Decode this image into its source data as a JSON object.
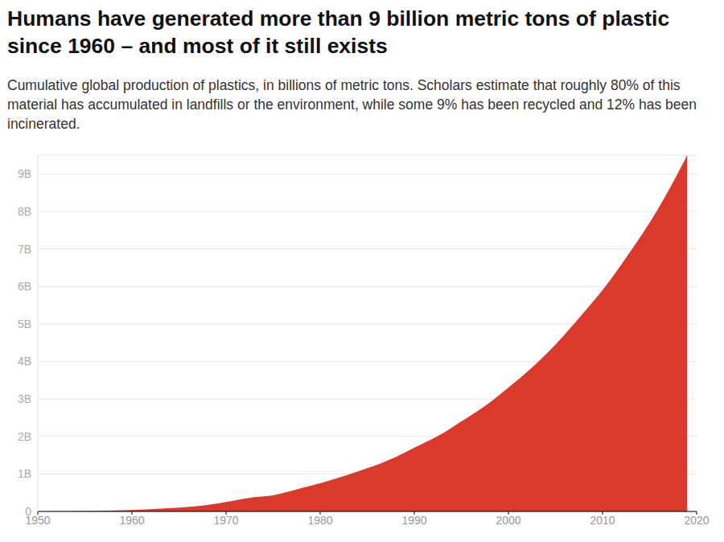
{
  "chart_data": {
    "type": "area",
    "title": "Humans have generated more than 9 billion metric tons of plastic since 1960 – and most of it still exists",
    "subtitle": "Cumulative global production of plastics, in billions of metric tons. Scholars estimate that roughly 80% of this material has accumulated in landfills or the environment, while some 9% has been recycled and 12% has been incinerated.",
    "x": [
      1950,
      1955,
      1960,
      1962,
      1965,
      1968,
      1970,
      1973,
      1975,
      1978,
      1980,
      1983,
      1985,
      1988,
      1990,
      1993,
      1995,
      1998,
      2000,
      2003,
      2005,
      2008,
      2010,
      2013,
      2015,
      2017,
      2019
    ],
    "values": [
      0,
      10000000,
      40000000,
      60000000,
      100000000,
      170000000,
      250000000,
      380000000,
      430000000,
      620000000,
      750000000,
      980000000,
      1150000000,
      1450000000,
      1700000000,
      2080000000,
      2400000000,
      2900000000,
      3300000000,
      3950000000,
      4450000000,
      5300000000,
      5900000000,
      6950000000,
      7700000000,
      8550000000,
      9500000000
    ],
    "color": "#d93a2b",
    "xlim": [
      1950,
      2020
    ],
    "xticks": [
      1950,
      1960,
      1970,
      1980,
      1990,
      2000,
      2010,
      2020
    ],
    "ylim": [
      0,
      9500000000
    ],
    "yticks": [
      0,
      {
        "value": 1000000000,
        "label": "1B"
      },
      {
        "value": 2000000000,
        "label": "2B"
      },
      {
        "value": 3000000000,
        "label": "3B"
      },
      {
        "value": 4000000000,
        "label": "4B"
      },
      {
        "value": 5000000000,
        "label": "5B"
      },
      {
        "value": 6000000000,
        "label": "6B"
      },
      {
        "value": 7000000000,
        "label": "7B"
      },
      {
        "value": 8000000000,
        "label": "8B"
      },
      {
        "value": 9000000000,
        "label": "9B"
      }
    ],
    "grid": true
  }
}
